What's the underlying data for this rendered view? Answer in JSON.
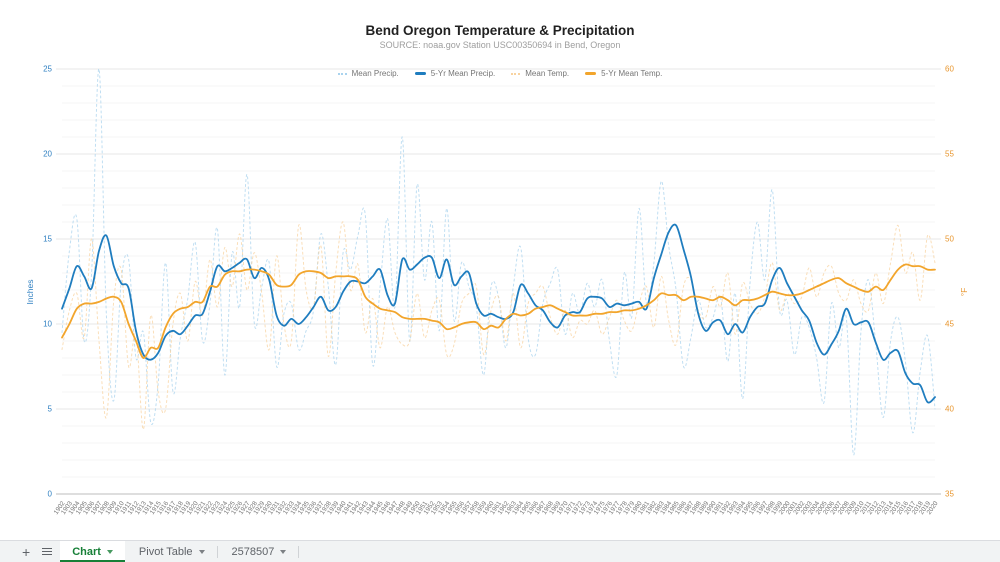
{
  "header": {
    "title": "Bend Oregon Temperature & Precipitation",
    "subtitle": "SOURCE: noaa.gov Station USC00350694 in Bend, Oregon"
  },
  "chart_data": {
    "type": "line",
    "title": "Bend Oregon Temperature & Precipitation",
    "legend_position": "top",
    "grid": {
      "minor": "#f4f4f4",
      "major": "#e7e7e7",
      "baseline": "#c9c9c9"
    },
    "left_axis": {
      "title": "Inches",
      "range": [
        0,
        25
      ],
      "major_step": 5,
      "minor_step": 1,
      "color": "#2e7fc1"
    },
    "right_axis": {
      "title": "°F",
      "range": [
        35,
        60
      ],
      "major_step": 5,
      "minor_step": 1,
      "color": "#e8962e"
    },
    "x_axis": {
      "color": "#757575",
      "labels": [
        1902,
        1903,
        1904,
        1905,
        1906,
        1907,
        1908,
        1909,
        1910,
        1911,
        1912,
        1913,
        1914,
        1915,
        1916,
        1917,
        1918,
        1919,
        1920,
        1921,
        1922,
        1923,
        1924,
        1925,
        1926,
        1927,
        1928,
        1929,
        1930,
        1931,
        1932,
        1933,
        1934,
        1935,
        1936,
        1937,
        1938,
        1939,
        1940,
        1941,
        1942,
        1943,
        1944,
        1945,
        1946,
        1947,
        1948,
        1949,
        1950,
        1951,
        1952,
        1953,
        1954,
        1955,
        1956,
        1957,
        1958,
        1959,
        1960,
        1961,
        1962,
        1963,
        1964,
        1965,
        1966,
        1967,
        1968,
        1969,
        1970,
        1971,
        1972,
        1973,
        1974,
        1975,
        1976,
        1977,
        1978,
        1979,
        1980,
        1981,
        1982,
        1983,
        1984,
        1985,
        1986,
        1987,
        1988,
        1989,
        1990,
        1991,
        1992,
        1993,
        1994,
        1995,
        1996,
        1997,
        1998,
        1999,
        2000,
        2001,
        2002,
        2003,
        2004,
        2005,
        2006,
        2007,
        2008,
        2009,
        2010,
        2011,
        2012,
        2013,
        2014,
        2015,
        2016,
        2017,
        2018,
        2019,
        2020
      ]
    },
    "series": [
      {
        "name": "Mean Precip.",
        "axis": "left",
        "style": "dashed",
        "color": "#a9d3ee",
        "width": 1,
        "values": [
          9.5,
          14.3,
          16.2,
          9.0,
          13.0,
          25.0,
          10.5,
          5.5,
          12.5,
          13.8,
          8.0,
          9.5,
          4.2,
          6.5,
          13.6,
          6.0,
          9.2,
          11.5,
          14.8,
          9.0,
          11.2,
          15.6,
          7.0,
          14.2,
          11.0,
          18.8,
          10.0,
          12.2,
          13.6,
          7.5,
          10.6,
          11.2,
          8.5,
          9.6,
          10.8,
          15.3,
          12.2,
          7.6,
          14.2,
          13.2,
          15.2,
          16.4,
          7.6,
          12.2,
          16.2,
          11.0,
          21.0,
          9.0,
          18.2,
          12.6,
          16.0,
          9.6,
          16.8,
          10.2,
          13.6,
          12.2,
          11.0,
          7.0,
          12.2,
          11.6,
          8.6,
          12.2,
          14.5,
          9.2,
          8.2,
          11.2,
          12.4,
          13.2,
          9.4,
          11.8,
          10.6,
          12.4,
          11.0,
          12.6,
          9.0,
          7.0,
          13.0,
          10.4,
          16.8,
          11.2,
          13.6,
          18.4,
          14.6,
          12.0,
          7.5,
          9.2,
          11.4,
          9.8,
          10.4,
          11.6,
          7.8,
          11.8,
          5.6,
          12.4,
          16.0,
          12.6,
          17.9,
          10.8,
          11.4,
          8.2,
          10.4,
          9.8,
          8.0,
          5.4,
          11.2,
          8.6,
          10.4,
          2.3,
          9.6,
          12.6,
          8.8,
          4.5,
          9.0,
          10.4,
          7.8,
          3.6,
          7.2,
          9.3,
          5.0
        ]
      },
      {
        "name": "5-Yr Mean Precip.",
        "axis": "left",
        "style": "solid",
        "color": "#1f7dbf",
        "width": 1.8,
        "values": [
          10.9,
          12.1,
          13.4,
          12.8,
          12.1,
          14.3,
          15.2,
          13.4,
          12.4,
          12.1,
          9.6,
          8.2,
          7.9,
          8.3,
          9.3,
          9.6,
          9.4,
          9.9,
          10.5,
          10.6,
          11.9,
          13.4,
          13.1,
          13.3,
          13.6,
          13.8,
          12.7,
          13.3,
          12.6,
          10.5,
          9.9,
          10.3,
          10.0,
          10.4,
          11.0,
          11.6,
          10.8,
          11.0,
          11.9,
          12.5,
          12.5,
          12.4,
          12.8,
          13.2,
          11.7,
          11.2,
          13.8,
          13.2,
          13.5,
          13.9,
          13.9,
          12.7,
          13.8,
          12.3,
          12.8,
          13.0,
          11.2,
          10.5,
          10.6,
          10.4,
          10.3,
          10.7,
          12.3,
          11.8,
          11.1,
          10.8,
          10.1,
          9.8,
          10.5,
          10.7,
          10.7,
          11.5,
          11.6,
          11.5,
          11.0,
          11.2,
          11.1,
          11.2,
          11.3,
          10.9,
          12.7,
          14.1,
          15.4,
          15.8,
          14.4,
          12.8,
          10.6,
          9.6,
          10.1,
          10.2,
          9.4,
          10.0,
          9.5,
          10.4,
          11.0,
          11.2,
          12.6,
          13.3,
          12.4,
          11.6,
          10.8,
          10.2,
          8.9,
          8.2,
          8.8,
          9.6,
          10.9,
          10.0,
          10.1,
          10.1,
          8.9,
          7.9,
          8.3,
          8.4,
          7.1,
          6.5,
          6.4,
          5.4,
          5.7
        ]
      },
      {
        "name": "Mean Temp.",
        "axis": "right",
        "style": "dashed",
        "color": "#f8d3a0",
        "width": 1,
        "values": [
          43.5,
          45.8,
          46.8,
          44.2,
          50.0,
          44.0,
          39.5,
          46.4,
          48.2,
          42.5,
          44.5,
          38.8,
          45.5,
          41.0,
          40.0,
          45.0,
          46.8,
          44.0,
          47.5,
          45.5,
          48.8,
          46.0,
          49.5,
          47.2,
          50.3,
          47.0,
          49.2,
          46.8,
          43.5,
          49.0,
          45.0,
          44.0,
          50.8,
          47.0,
          46.0,
          49.6,
          43.1,
          48.0,
          51.0,
          47.0,
          48.5,
          44.5,
          46.5,
          43.6,
          46.0,
          44.5,
          43.8,
          44.0,
          46.8,
          44.2,
          45.8,
          46.4,
          43.2,
          43.8,
          46.2,
          46.8,
          47.2,
          43.2,
          45.8,
          46.6,
          44.0,
          46.8,
          43.6,
          46.2,
          46.8,
          47.2,
          45.4,
          44.4,
          45.8,
          44.2,
          45.2,
          45.0,
          45.8,
          44.4,
          45.4,
          46.4,
          45.2,
          44.6,
          46.2,
          47.2,
          44.8,
          47.8,
          45.2,
          43.8,
          47.2,
          47.6,
          45.8,
          45.4,
          47.2,
          46.0,
          48.0,
          44.4,
          47.4,
          46.2,
          45.6,
          46.6,
          48.6,
          45.8,
          46.8,
          46.2,
          46.6,
          48.3,
          46.6,
          48.0,
          48.4,
          46.8,
          46.4,
          47.6,
          46.2,
          45.8,
          48.0,
          46.2,
          48.6,
          50.8,
          48.0,
          49.2,
          46.4,
          50.2,
          48.6
        ]
      },
      {
        "name": "5-Yr Mean Temp.",
        "axis": "right",
        "style": "solid",
        "color": "#f2a52c",
        "width": 1.8,
        "values": [
          44.2,
          45.0,
          45.9,
          46.2,
          46.2,
          46.3,
          46.5,
          46.6,
          46.3,
          45.0,
          44.0,
          43.0,
          43.6,
          43.6,
          44.8,
          45.6,
          45.9,
          46.0,
          46.3,
          46.3,
          47.2,
          47.2,
          47.9,
          48.1,
          48.1,
          48.2,
          48.2,
          48.1,
          47.9,
          47.3,
          47.2,
          47.3,
          47.9,
          48.1,
          48.1,
          48.0,
          47.7,
          47.8,
          47.8,
          47.8,
          47.6,
          46.6,
          46.2,
          45.9,
          45.8,
          45.7,
          45.4,
          45.3,
          45.3,
          45.3,
          45.2,
          45.1,
          44.7,
          44.8,
          45.0,
          45.1,
          45.1,
          44.7,
          44.9,
          44.8,
          45.3,
          45.6,
          45.5,
          45.6,
          45.9,
          46.0,
          46.1,
          45.9,
          45.7,
          45.5,
          45.5,
          45.5,
          45.6,
          45.6,
          45.7,
          45.7,
          45.8,
          45.8,
          45.9,
          46.1,
          46.4,
          46.8,
          46.7,
          46.7,
          46.4,
          46.6,
          46.6,
          46.5,
          46.4,
          46.6,
          46.4,
          46.1,
          46.4,
          46.4,
          46.5,
          46.7,
          46.9,
          46.8,
          46.7,
          46.7,
          46.8,
          47.0,
          47.2,
          47.4,
          47.6,
          47.7,
          47.4,
          47.2,
          47.0,
          46.9,
          47.2,
          47.0,
          47.6,
          48.2,
          48.5,
          48.4,
          48.4,
          48.2,
          48.2
        ]
      }
    ]
  },
  "tabbar": {
    "active_color": "#188038",
    "tabs": [
      {
        "label": "Chart",
        "active": true
      },
      {
        "label": "Pivot Table",
        "active": false
      },
      {
        "label": "2578507",
        "active": false
      }
    ]
  }
}
